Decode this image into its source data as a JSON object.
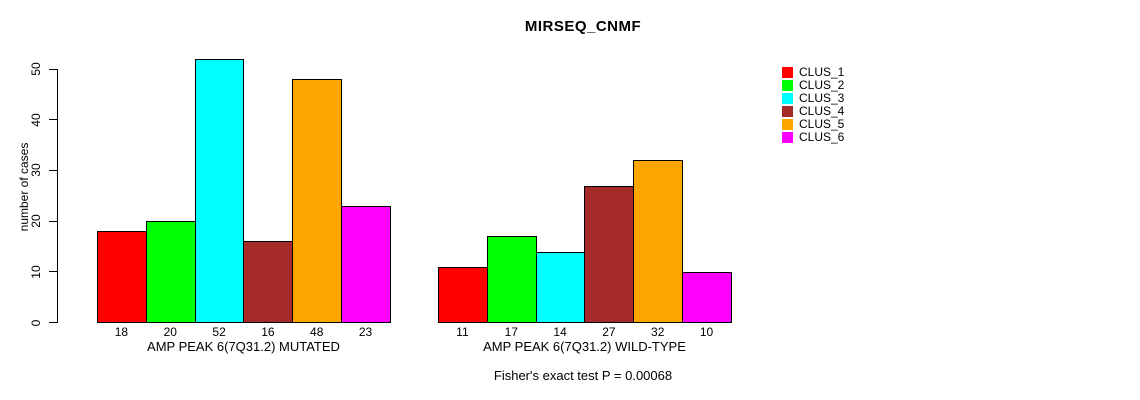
{
  "title": "MIRSEQ_CNMF",
  "caption": "Fisher's exact test P = 0.00068",
  "y_axis": {
    "label": "number of cases",
    "ticks": [
      0,
      10,
      20,
      30,
      40,
      50
    ]
  },
  "chart_data": {
    "type": "bar",
    "title": "MIRSEQ_CNMF",
    "xlabel": "",
    "ylabel": "number of cases",
    "ylim": [
      0,
      52
    ],
    "yticks": [
      0,
      10,
      20,
      30,
      40,
      50
    ],
    "grid": false,
    "legend_position": "right-outside",
    "bar_value_labels_shown": true,
    "series_names": [
      "CLUS_1",
      "CLUS_2",
      "CLUS_3",
      "CLUS_4",
      "CLUS_5",
      "CLUS_6"
    ],
    "series_colors": [
      "#ff0000",
      "#00ff00",
      "#00ffff",
      "#a52a2a",
      "#ffa500",
      "#ff00ff"
    ],
    "groups": [
      {
        "label": "AMP PEAK 6(7Q31.2) MUTATED",
        "values": [
          18,
          20,
          52,
          16,
          48,
          23
        ]
      },
      {
        "label": "AMP PEAK 6(7Q31.2) WILD-TYPE",
        "values": [
          11,
          17,
          14,
          27,
          32,
          10
        ]
      }
    ],
    "annotation": "Fisher's exact test P = 0.00068"
  },
  "legend": {
    "entries": [
      {
        "label": "CLUS_1",
        "color": "#ff0000"
      },
      {
        "label": "CLUS_2",
        "color": "#00ff00"
      },
      {
        "label": "CLUS_3",
        "color": "#00ffff"
      },
      {
        "label": "CLUS_4",
        "color": "#a52a2a"
      },
      {
        "label": "CLUS_5",
        "color": "#ffa500"
      },
      {
        "label": "CLUS_6",
        "color": "#ff00ff"
      }
    ]
  }
}
